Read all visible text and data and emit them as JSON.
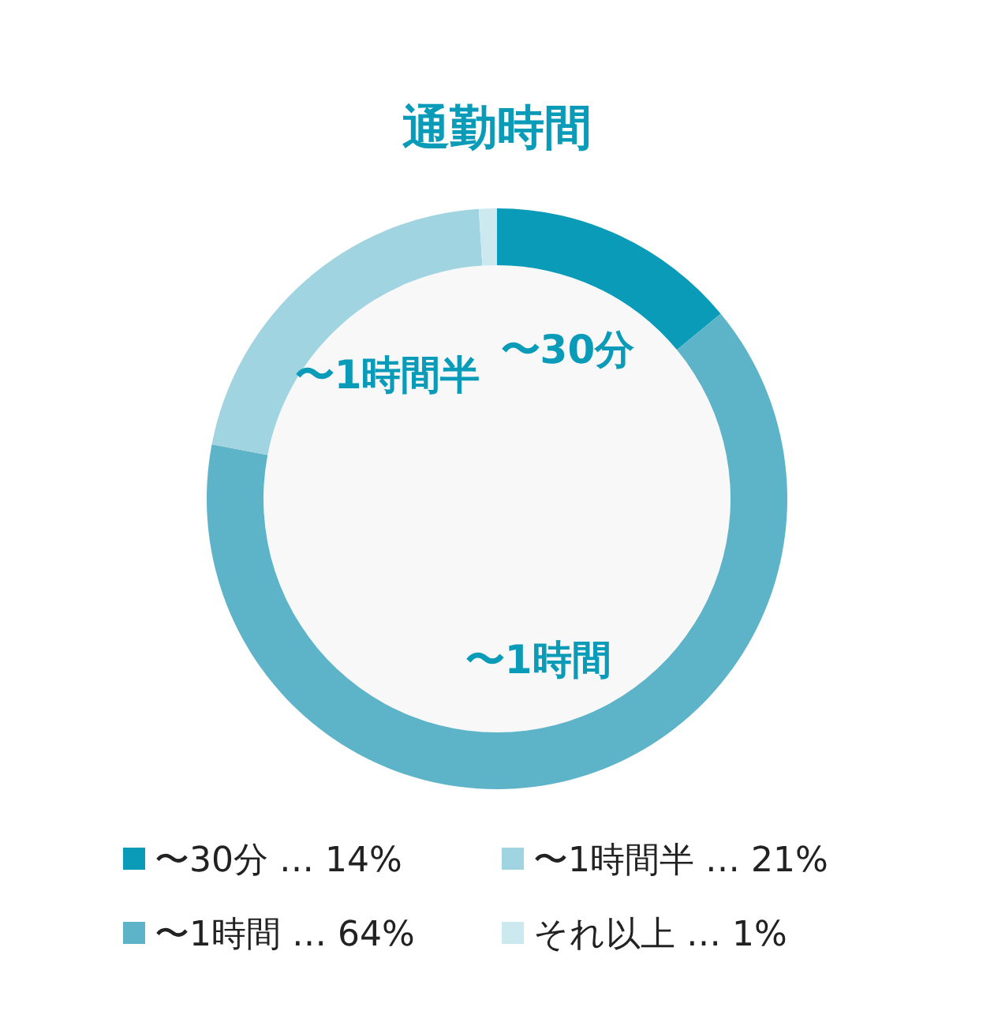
{
  "chart_data": {
    "type": "donut",
    "title": "通勤時間",
    "categories": [
      "〜30分",
      "〜1時間",
      "〜1時間半",
      "それ以上"
    ],
    "values": [
      14,
      64,
      21,
      1
    ],
    "colors": [
      "#0a9bb9",
      "#5db3c7",
      "#a0d4e1",
      "#cde9f0"
    ],
    "value_labels": [
      "… 14%",
      "… 64%",
      "… 21%",
      "… 1%"
    ],
    "legend": "bottom"
  }
}
